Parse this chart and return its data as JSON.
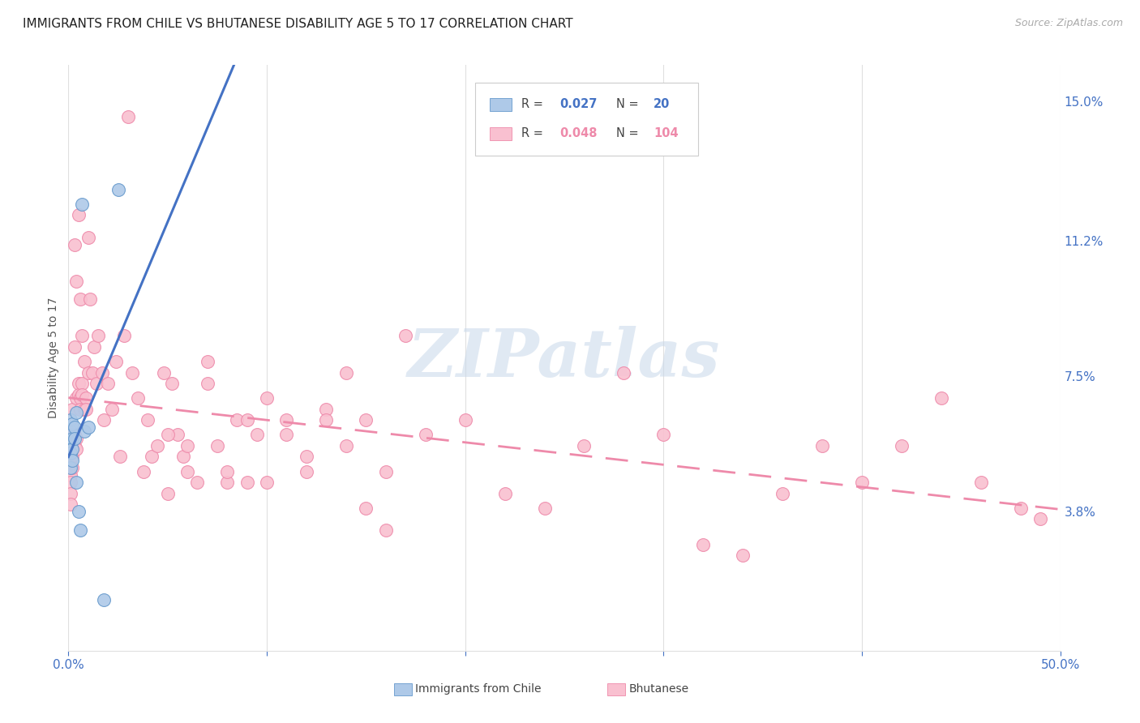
{
  "title": "IMMIGRANTS FROM CHILE VS BHUTANESE DISABILITY AGE 5 TO 17 CORRELATION CHART",
  "source": "Source: ZipAtlas.com",
  "ylabel": "Disability Age 5 to 17",
  "xlim": [
    0,
    0.5
  ],
  "ylim": [
    0,
    0.16
  ],
  "xtick_left_label": "0.0%",
  "xtick_right_label": "50.0%",
  "yticks_right": [
    0.038,
    0.075,
    0.112,
    0.15
  ],
  "ytick_labels_right": [
    "3.8%",
    "7.5%",
    "11.2%",
    "15.0%"
  ],
  "chile_color": "#aec9e8",
  "chile_edge_color": "#6699cc",
  "bhutan_color": "#f9c0d0",
  "bhutan_edge_color": "#ee8aaa",
  "chile_trend_color": "#4472c4",
  "bhutan_trend_color": "#ee8aaa",
  "watermark_text": "ZIPatlas",
  "watermark_color": "#c8d8ea",
  "background_color": "#ffffff",
  "grid_color": "#e0e0e0",
  "title_fontsize": 11,
  "tick_fontsize": 11,
  "right_tick_color": "#4472c4",
  "bottom_tick_color": "#4472c4",
  "legend_label1": "Immigrants from Chile",
  "legend_label2": "Bhutanese",
  "chile_x": [
    0.001,
    0.001,
    0.001,
    0.001,
    0.001,
    0.002,
    0.002,
    0.002,
    0.002,
    0.003,
    0.003,
    0.004,
    0.004,
    0.005,
    0.006,
    0.007,
    0.008,
    0.01,
    0.018,
    0.025
  ],
  "chile_y": [
    0.063,
    0.06,
    0.057,
    0.054,
    0.05,
    0.062,
    0.058,
    0.055,
    0.052,
    0.061,
    0.058,
    0.065,
    0.046,
    0.038,
    0.033,
    0.122,
    0.06,
    0.061,
    0.014,
    0.126
  ],
  "bhutan_x": [
    0.001,
    0.001,
    0.001,
    0.001,
    0.001,
    0.001,
    0.002,
    0.002,
    0.002,
    0.002,
    0.002,
    0.003,
    0.003,
    0.003,
    0.003,
    0.004,
    0.004,
    0.004,
    0.004,
    0.005,
    0.005,
    0.005,
    0.006,
    0.006,
    0.006,
    0.007,
    0.007,
    0.007,
    0.008,
    0.008,
    0.009,
    0.009,
    0.01,
    0.01,
    0.011,
    0.012,
    0.013,
    0.014,
    0.015,
    0.017,
    0.018,
    0.02,
    0.022,
    0.024,
    0.026,
    0.028,
    0.03,
    0.032,
    0.035,
    0.038,
    0.04,
    0.042,
    0.045,
    0.048,
    0.05,
    0.052,
    0.055,
    0.058,
    0.06,
    0.065,
    0.07,
    0.075,
    0.08,
    0.085,
    0.09,
    0.095,
    0.1,
    0.11,
    0.12,
    0.13,
    0.14,
    0.15,
    0.16,
    0.17,
    0.18,
    0.2,
    0.22,
    0.24,
    0.26,
    0.28,
    0.3,
    0.32,
    0.34,
    0.36,
    0.38,
    0.4,
    0.42,
    0.44,
    0.46,
    0.48,
    0.49,
    0.05,
    0.06,
    0.07,
    0.08,
    0.09,
    0.1,
    0.11,
    0.12,
    0.13,
    0.14,
    0.15,
    0.16
  ],
  "bhutan_y": [
    0.056,
    0.051,
    0.048,
    0.046,
    0.043,
    0.04,
    0.066,
    0.059,
    0.056,
    0.053,
    0.05,
    0.111,
    0.083,
    0.059,
    0.056,
    0.101,
    0.069,
    0.058,
    0.055,
    0.119,
    0.073,
    0.07,
    0.096,
    0.069,
    0.066,
    0.086,
    0.073,
    0.07,
    0.079,
    0.066,
    0.069,
    0.066,
    0.113,
    0.076,
    0.096,
    0.076,
    0.083,
    0.073,
    0.086,
    0.076,
    0.063,
    0.073,
    0.066,
    0.079,
    0.053,
    0.086,
    0.146,
    0.076,
    0.069,
    0.049,
    0.063,
    0.053,
    0.056,
    0.076,
    0.043,
    0.073,
    0.059,
    0.053,
    0.056,
    0.046,
    0.079,
    0.056,
    0.046,
    0.063,
    0.046,
    0.059,
    0.069,
    0.063,
    0.049,
    0.066,
    0.056,
    0.063,
    0.033,
    0.086,
    0.059,
    0.063,
    0.043,
    0.039,
    0.056,
    0.076,
    0.059,
    0.029,
    0.026,
    0.043,
    0.056,
    0.046,
    0.056,
    0.069,
    0.046,
    0.039,
    0.036,
    0.059,
    0.049,
    0.073,
    0.049,
    0.063,
    0.046,
    0.059,
    0.053,
    0.063,
    0.076,
    0.039,
    0.049
  ]
}
